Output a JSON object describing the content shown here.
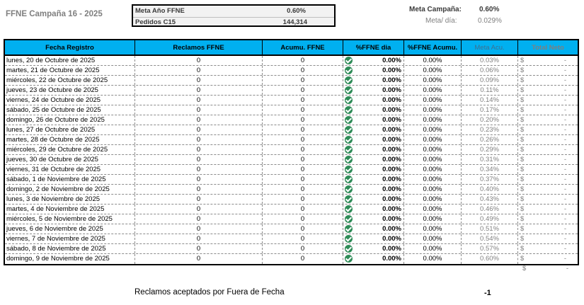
{
  "title": "FFNE Campaña 16 - 2025",
  "kpi": {
    "meta_anio_label": "Meta Año FFNE",
    "meta_anio_value": "0.60%",
    "pedidos_label": "Pedidos C15",
    "pedidos_value": "144,314"
  },
  "meta_campania": {
    "label": "Meta Campaña:",
    "value": "0.60%"
  },
  "meta_dia": {
    "label": "Meta/ día:",
    "value": "0.029%"
  },
  "headers": [
    "Fecha Registro",
    "Reclamos FFNE",
    "Acumu. FFNE",
    "%FFNE dia",
    "%FFNE Acumu.",
    "Meta Acu.",
    "Total Neto"
  ],
  "currency_symbol": "$",
  "dash": "-",
  "rows": [
    {
      "fecha": "lunes, 20 de Octubre de 2025",
      "reclamos": "0",
      "acumu": "0",
      "pct_dia": "0.00%",
      "pct_acumu": "0.00%",
      "meta_acu": "0.03%"
    },
    {
      "fecha": "martes, 21 de Octubre de 2025",
      "reclamos": "0",
      "acumu": "0",
      "pct_dia": "0.00%",
      "pct_acumu": "0.00%",
      "meta_acu": "0.06%"
    },
    {
      "fecha": "miércoles, 22 de Octubre de 2025",
      "reclamos": "0",
      "acumu": "0",
      "pct_dia": "0.00%",
      "pct_acumu": "0.00%",
      "meta_acu": "0.09%"
    },
    {
      "fecha": "jueves, 23 de Octubre de 2025",
      "reclamos": "0",
      "acumu": "0",
      "pct_dia": "0.00%",
      "pct_acumu": "0.00%",
      "meta_acu": "0.11%"
    },
    {
      "fecha": "viernes, 24 de Octubre de 2025",
      "reclamos": "0",
      "acumu": "0",
      "pct_dia": "0.00%",
      "pct_acumu": "0.00%",
      "meta_acu": "0.14%"
    },
    {
      "fecha": "sábado, 25 de Octubre de 2025",
      "reclamos": "0",
      "acumu": "0",
      "pct_dia": "0.00%",
      "pct_acumu": "0.00%",
      "meta_acu": "0.17%"
    },
    {
      "fecha": "domingo, 26 de Octubre de 2025",
      "reclamos": "0",
      "acumu": "0",
      "pct_dia": "0.00%",
      "pct_acumu": "0.00%",
      "meta_acu": "0.20%"
    },
    {
      "fecha": "lunes, 27 de Octubre de 2025",
      "reclamos": "0",
      "acumu": "0",
      "pct_dia": "0.00%",
      "pct_acumu": "0.00%",
      "meta_acu": "0.23%"
    },
    {
      "fecha": "martes, 28 de Octubre de 2025",
      "reclamos": "0",
      "acumu": "0",
      "pct_dia": "0.00%",
      "pct_acumu": "0.00%",
      "meta_acu": "0.26%"
    },
    {
      "fecha": "miércoles, 29 de Octubre de 2025",
      "reclamos": "0",
      "acumu": "0",
      "pct_dia": "0.00%",
      "pct_acumu": "0.00%",
      "meta_acu": "0.29%"
    },
    {
      "fecha": "jueves, 30 de Octubre de 2025",
      "reclamos": "0",
      "acumu": "0",
      "pct_dia": "0.00%",
      "pct_acumu": "0.00%",
      "meta_acu": "0.31%"
    },
    {
      "fecha": "viernes, 31 de Octubre de 2025",
      "reclamos": "0",
      "acumu": "0",
      "pct_dia": "0.00%",
      "pct_acumu": "0.00%",
      "meta_acu": "0.34%"
    },
    {
      "fecha": "sábado, 1 de Noviembre de 2025",
      "reclamos": "0",
      "acumu": "0",
      "pct_dia": "0.00%",
      "pct_acumu": "0.00%",
      "meta_acu": "0.37%"
    },
    {
      "fecha": "domingo, 2 de Noviembre de 2025",
      "reclamos": "0",
      "acumu": "0",
      "pct_dia": "0.00%",
      "pct_acumu": "0.00%",
      "meta_acu": "0.40%"
    },
    {
      "fecha": "lunes, 3 de Noviembre de 2025",
      "reclamos": "0",
      "acumu": "0",
      "pct_dia": "0.00%",
      "pct_acumu": "0.00%",
      "meta_acu": "0.43%"
    },
    {
      "fecha": "martes, 4 de Noviembre de 2025",
      "reclamos": "0",
      "acumu": "0",
      "pct_dia": "0.00%",
      "pct_acumu": "0.00%",
      "meta_acu": "0.46%"
    },
    {
      "fecha": "miércoles, 5 de Noviembre de 2025",
      "reclamos": "0",
      "acumu": "0",
      "pct_dia": "0.00%",
      "pct_acumu": "0.00%",
      "meta_acu": "0.49%"
    },
    {
      "fecha": "jueves, 6 de Noviembre de 2025",
      "reclamos": "0",
      "acumu": "0",
      "pct_dia": "0.00%",
      "pct_acumu": "0.00%",
      "meta_acu": "0.51%"
    },
    {
      "fecha": "viernes, 7 de Noviembre de 2025",
      "reclamos": "0",
      "acumu": "0",
      "pct_dia": "0.00%",
      "pct_acumu": "0.00%",
      "meta_acu": "0.54%"
    },
    {
      "fecha": "sábado, 8 de Noviembre de 2025",
      "reclamos": "0",
      "acumu": "0",
      "pct_dia": "0.00%",
      "pct_acumu": "0.00%",
      "meta_acu": "0.57%"
    },
    {
      "fecha": "domingo, 9 de Noviembre de 2025",
      "reclamos": "0",
      "acumu": "0",
      "pct_dia": "0.00%",
      "pct_acumu": "0.00%",
      "meta_acu": "0.60%"
    }
  ],
  "footer": {
    "label": "Reclamos aceptados por Fuera de Fecha",
    "value": "-1"
  },
  "colors": {
    "header_bg": "#00b0f0",
    "check": "#2e8b57",
    "muted_text": "#7f7f7f"
  }
}
